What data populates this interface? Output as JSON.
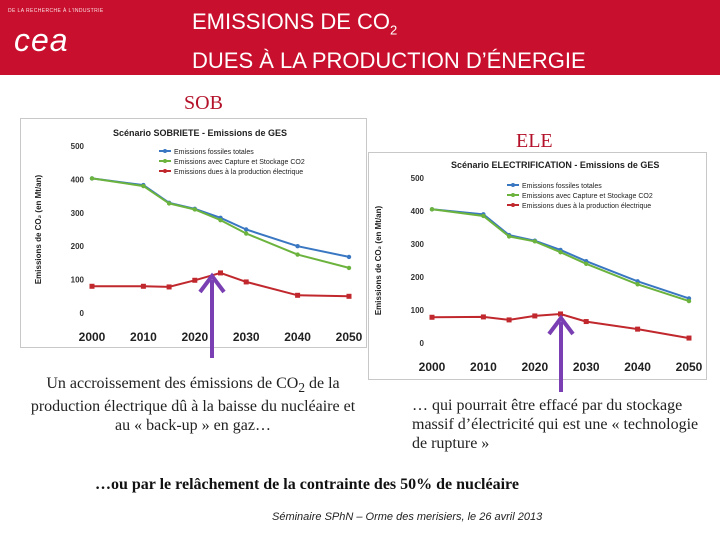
{
  "header": {
    "logo_small": "DE LA RECHERCHE À L'INDUSTRIE",
    "logo_main": "cea",
    "title_line1_main": "EMISSIONS DE CO",
    "title_line1_sub": "2",
    "title_line2": "DUES À LA PRODUCTION D’ÉNERGIE"
  },
  "labels": {
    "left": "SOB",
    "right": "ELE"
  },
  "colors": {
    "banner": "#c8102e",
    "fossil": "#3a77c2",
    "ccs": "#6cb33e",
    "electric": "#c0282d",
    "arrow": "#7a3fb2"
  },
  "chart_data": [
    {
      "type": "line",
      "title": "Scénario SOBRIETE - Emissions de GES",
      "ylabel": "Emissions de CO₂ (en Mt/an)",
      "xlabel": "",
      "ylim": [
        0,
        500
      ],
      "xlim": [
        2000,
        2050
      ],
      "yticks": [
        0,
        100,
        200,
        300,
        400,
        500
      ],
      "xticks": [
        2000,
        2010,
        2020,
        2030,
        2040,
        2050
      ],
      "legend_position": "top-right",
      "series": [
        {
          "name": "Emissions fossiles totales",
          "color": "#3a77c2",
          "x": [
            2000,
            2010,
            2015,
            2020,
            2025,
            2030,
            2040,
            2050
          ],
          "y": [
            403,
            383,
            330,
            312,
            285,
            250,
            200,
            168
          ]
        },
        {
          "name": "Emissions avec Capture et Stockage CO2",
          "color": "#6cb33e",
          "x": [
            2000,
            2010,
            2015,
            2020,
            2025,
            2030,
            2040,
            2050
          ],
          "y": [
            403,
            380,
            328,
            310,
            278,
            238,
            175,
            135
          ]
        },
        {
          "name": "Emissions dues à la production électrique",
          "color": "#c0282d",
          "x": [
            2000,
            2010,
            2015,
            2020,
            2025,
            2030,
            2040,
            2050
          ],
          "y": [
            80,
            80,
            78,
            98,
            120,
            93,
            53,
            50
          ]
        }
      ]
    },
    {
      "type": "line",
      "title": "Scénario ELECTRIFICATION - Emissions de GES",
      "ylabel": "Emissions de CO₂ (en Mt/an)",
      "xlabel": "",
      "ylim": [
        0,
        500
      ],
      "xlim": [
        2000,
        2050
      ],
      "yticks": [
        0,
        100,
        200,
        300,
        400,
        500
      ],
      "xticks": [
        2000,
        2010,
        2020,
        2030,
        2040,
        2050
      ],
      "legend_position": "top-right",
      "series": [
        {
          "name": "Emissions fossiles totales",
          "color": "#3a77c2",
          "x": [
            2000,
            2010,
            2015,
            2020,
            2025,
            2030,
            2040,
            2050
          ],
          "y": [
            405,
            390,
            327,
            310,
            282,
            248,
            187,
            135
          ]
        },
        {
          "name": "Emissions avec Capture et Stockage CO2",
          "color": "#6cb33e",
          "x": [
            2000,
            2010,
            2015,
            2020,
            2025,
            2030,
            2040,
            2050
          ],
          "y": [
            405,
            385,
            323,
            308,
            275,
            240,
            178,
            127
          ]
        },
        {
          "name": "Emissions dues à la production électrique",
          "color": "#c0282d",
          "x": [
            2000,
            2010,
            2015,
            2020,
            2025,
            2030,
            2040,
            2050
          ],
          "y": [
            78,
            79,
            70,
            82,
            88,
            65,
            42,
            15
          ]
        }
      ]
    }
  ],
  "notes": {
    "left_main": "Un accroissement des émissions de CO",
    "left_sub": "2",
    "left_rest": "de la production électrique dû à la baisse du nucléaire et au « back-up » en gaz…",
    "right": "… qui pourrait être effacé par du stockage massif d’électricité qui est une « technologie de rupture »"
  },
  "footer": {
    "conclusion": "…ou par le relâchement de la contrainte des 50% de nucléaire",
    "seminar": "Séminaire SPhN – Orme des merisiers, le 26 avril 2013"
  }
}
